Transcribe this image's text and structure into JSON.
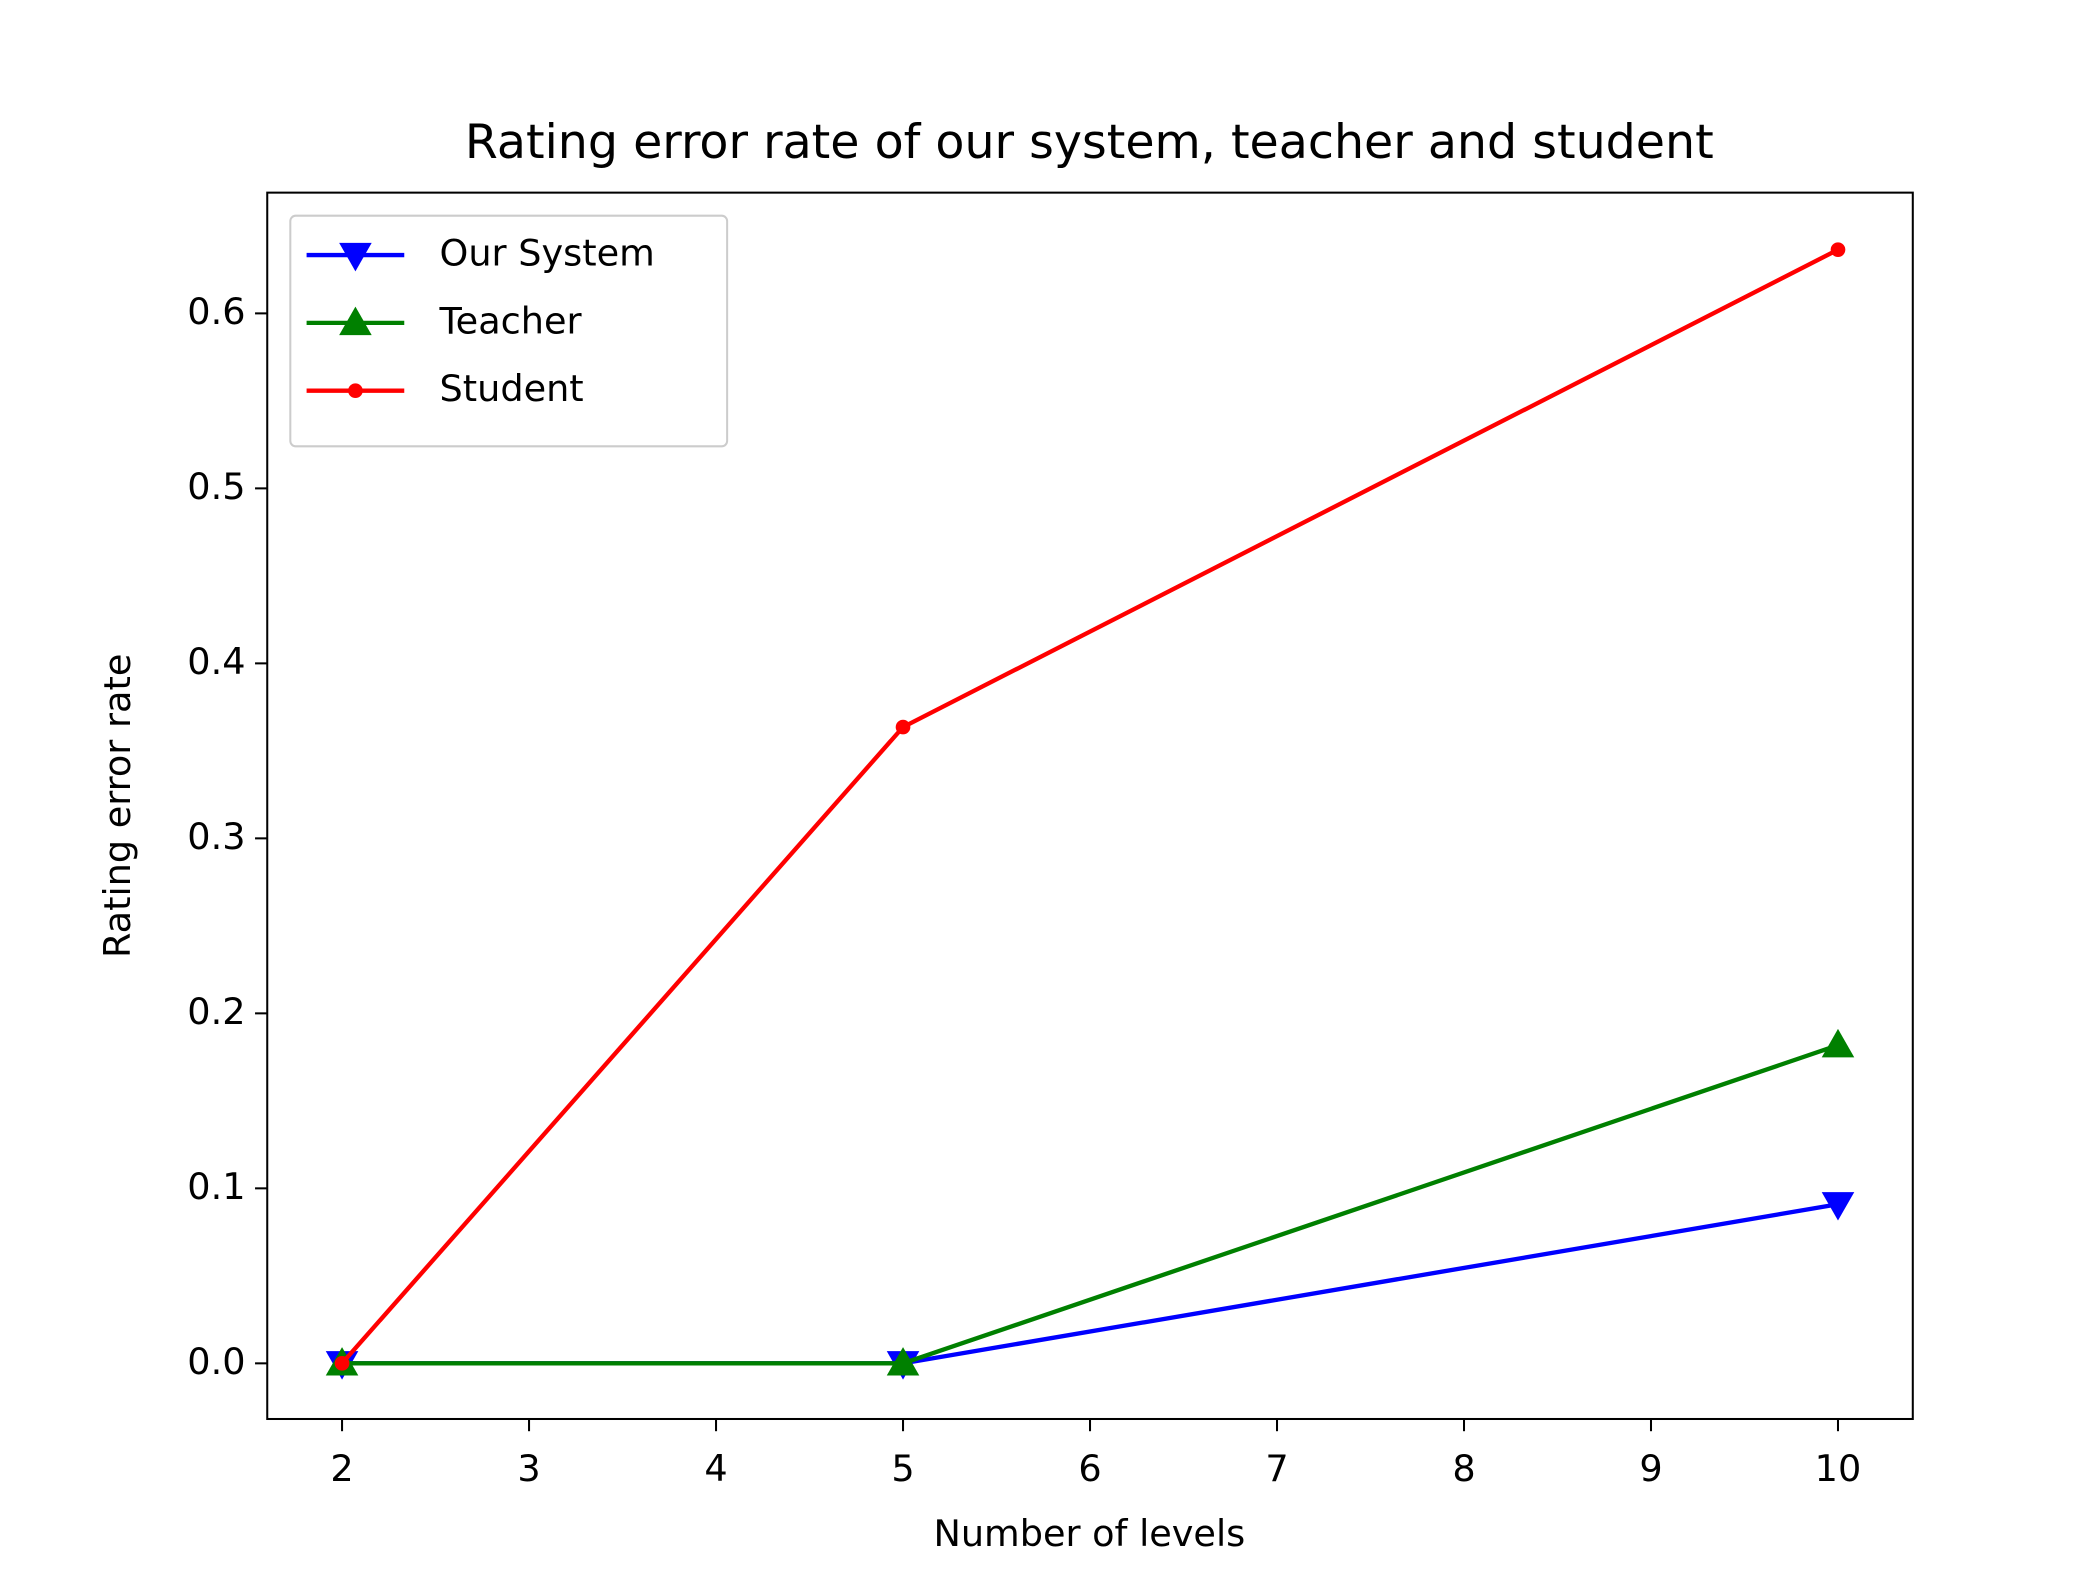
{
  "chart_data": {
    "type": "line",
    "title": "Rating error rate of our system, teacher and student",
    "xlabel": "Number of levels",
    "ylabel": "Rating error rate",
    "x": [
      2,
      5,
      10
    ],
    "series": [
      {
        "name": "Our System",
        "color": "#0000ff",
        "marker": "triangle-down",
        "values": [
          0,
          0,
          0.0909
        ]
      },
      {
        "name": "Teacher",
        "color": "#008000",
        "marker": "triangle-up",
        "values": [
          0,
          0,
          0.1818
        ]
      },
      {
        "name": "Student",
        "color": "#ff0000",
        "marker": "circle",
        "values": [
          0,
          0.3636,
          0.6364
        ]
      }
    ],
    "xlim": [
      1.6,
      10.4
    ],
    "xticks": [
      2,
      3,
      4,
      5,
      6,
      7,
      8,
      9,
      10
    ],
    "ylim": [
      -0.0318,
      0.669
    ],
    "yticks": [
      {
        "value": 0,
        "label": "0.0"
      },
      0.1,
      0.2,
      0.3,
      0.4,
      0.5,
      0.6
    ],
    "legend": "upper left",
    "grid": false
  }
}
